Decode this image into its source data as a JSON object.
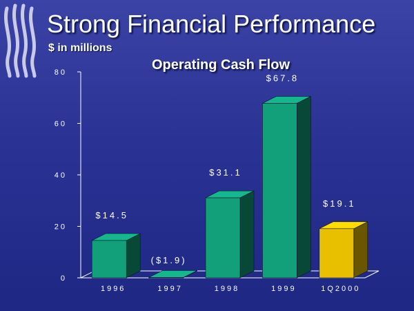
{
  "slide": {
    "title": "Strong Financial Performance",
    "subtitle": "$ in millions"
  },
  "colors": {
    "background": "#2a3394",
    "bar_green": "#12a07a",
    "bar_gold": "#e8c000",
    "text": "#ffffff"
  },
  "chart_data": {
    "type": "bar",
    "title": "Operating Cash Flow",
    "xlabel": "",
    "ylabel": "",
    "categories": [
      "1996",
      "1997",
      "1998",
      "1999",
      "1Q2000"
    ],
    "values": [
      14.5,
      -1.9,
      31.1,
      67.8,
      19.1
    ],
    "data_labels": [
      "$14.5",
      "($1.9)",
      "$31.1",
      "$67.8",
      "$19.1"
    ],
    "bar_colors": [
      "green",
      "green",
      "green",
      "green",
      "gold"
    ],
    "yticks": [
      "0",
      "20",
      "40",
      "60",
      "80"
    ],
    "ylim": [
      0,
      80
    ],
    "grid": false,
    "legend": "none"
  }
}
